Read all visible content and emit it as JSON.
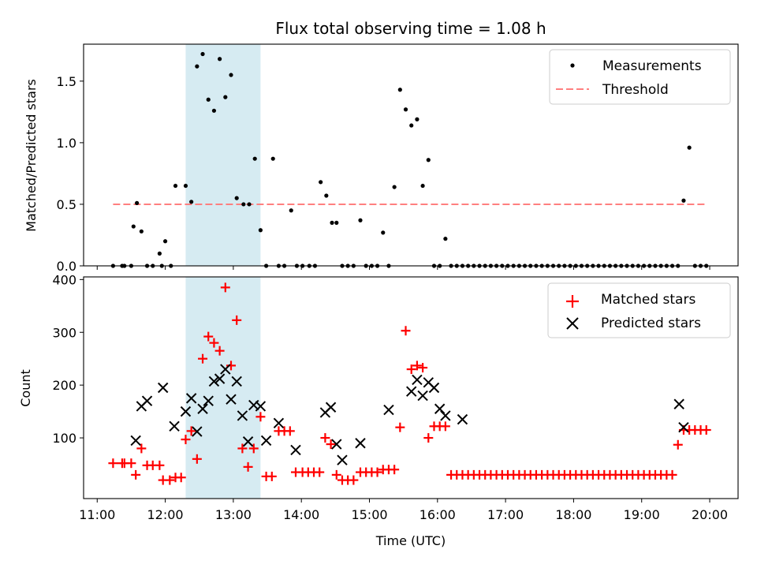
{
  "chart_data": [
    {
      "type": "scatter",
      "title": "Flux total observing time = 1.08 h",
      "xlabel": "",
      "ylabel": "Matched/Predicted stars",
      "xlim": [
        "11:00",
        "20:00"
      ],
      "ylim": [
        0,
        1.8
      ],
      "y_ticks": [
        "0.0",
        "0.5",
        "1.0",
        "1.5"
      ],
      "x_tick_labels_visible": false,
      "legend_position": "upper right",
      "shaded_interval": {
        "start": "12:18",
        "end": "13:24",
        "color": "#add8e6"
      },
      "series": [
        {
          "name": "Measurements",
          "marker": "dot",
          "color": "#000000",
          "x": [
            "11:14",
            "11:22",
            "11:24",
            "11:30",
            "11:32",
            "11:35",
            "11:39",
            "11:44",
            "11:49",
            "11:55",
            "11:57",
            "12:00",
            "12:05",
            "12:09",
            "12:18",
            "12:23",
            "12:28",
            "12:33",
            "12:38",
            "12:43",
            "12:48",
            "12:53",
            "12:58",
            "13:03",
            "13:09",
            "13:14",
            "13:19",
            "13:24",
            "13:29",
            "13:35",
            "13:40",
            "13:45",
            "13:51",
            "13:56",
            "14:01",
            "14:07",
            "14:12",
            "14:17",
            "14:22",
            "14:27",
            "14:31",
            "14:36",
            "14:41",
            "14:46",
            "14:52",
            "14:57",
            "15:02",
            "15:07",
            "15:12",
            "15:17",
            "15:22",
            "15:27",
            "15:32",
            "15:37",
            "15:42",
            "15:47",
            "15:52",
            "15:57",
            "16:02",
            "16:07",
            "16:12",
            "16:17",
            "16:22",
            "16:27",
            "16:32",
            "16:37",
            "16:42",
            "16:47",
            "16:52",
            "16:57",
            "17:02",
            "17:07",
            "17:12",
            "17:17",
            "17:22",
            "17:27",
            "17:32",
            "17:37",
            "17:42",
            "17:47",
            "17:52",
            "17:57",
            "18:02",
            "18:07",
            "18:12",
            "18:17",
            "18:22",
            "18:27",
            "18:32",
            "18:37",
            "18:42",
            "18:47",
            "18:52",
            "18:57",
            "19:02",
            "19:07",
            "19:12",
            "19:17",
            "19:22",
            "19:27",
            "19:32",
            "19:37",
            "19:42",
            "19:47",
            "19:52",
            "19:57"
          ],
          "y": [
            0,
            0,
            0,
            0,
            0.32,
            0.51,
            0.28,
            0,
            0,
            0.1,
            0,
            0.2,
            0,
            0.65,
            0.65,
            0.52,
            1.62,
            1.72,
            1.35,
            1.26,
            1.68,
            1.37,
            1.55,
            0.55,
            0.5,
            0.5,
            0.87,
            0.29,
            0,
            0.87,
            0,
            0,
            0.45,
            0,
            0,
            0,
            0,
            0.68,
            0.57,
            0.35,
            0.35,
            0,
            0,
            0,
            0.37,
            0,
            0,
            0,
            0.27,
            0,
            0.64,
            1.43,
            1.27,
            1.14,
            1.19,
            0.65,
            0.86,
            0,
            0,
            0.22,
            0,
            0,
            0,
            0,
            0,
            0,
            0,
            0,
            0,
            0,
            0,
            0,
            0,
            0,
            0,
            0,
            0,
            0,
            0,
            0,
            0,
            0,
            0,
            0,
            0,
            0,
            0,
            0,
            0,
            0,
            0,
            0,
            0,
            0,
            0,
            0,
            0,
            0,
            0,
            0,
            0,
            0.53,
            0.96,
            0,
            0,
            0
          ]
        },
        {
          "name": "Threshold",
          "marker": "dashed-line",
          "color": "#ff7f7f",
          "x": [
            "11:14",
            "19:57"
          ],
          "y": [
            0.5,
            0.5
          ]
        }
      ]
    },
    {
      "type": "scatter",
      "title": "",
      "xlabel": "Time (UTC)",
      "ylabel": "Count",
      "xlim": [
        "11:00",
        "20:00"
      ],
      "ylim": [
        0,
        400
      ],
      "y_ticks": [
        "100",
        "200",
        "300",
        "400"
      ],
      "x_ticks": [
        "11:00",
        "12:00",
        "13:00",
        "14:00",
        "15:00",
        "16:00",
        "17:00",
        "18:00",
        "19:00",
        "20:00"
      ],
      "legend_position": "upper right",
      "shaded_interval": {
        "start": "12:18",
        "end": "13:24",
        "color": "#add8e6"
      },
      "series": [
        {
          "name": "Matched stars",
          "marker": "plus",
          "color": "#ff0000",
          "x": [
            "11:14",
            "11:22",
            "11:24",
            "11:30",
            "11:34",
            "11:39",
            "11:44",
            "11:49",
            "11:55",
            "11:58",
            "12:04",
            "12:09",
            "12:14",
            "12:18",
            "12:23",
            "12:28",
            "12:33",
            "12:38",
            "12:43",
            "12:48",
            "12:53",
            "12:58",
            "13:03",
            "13:08",
            "13:13",
            "13:18",
            "13:24",
            "13:29",
            "13:34",
            "13:40",
            "13:45",
            "13:50",
            "13:55",
            "14:01",
            "14:06",
            "14:11",
            "14:16",
            "14:21",
            "14:26",
            "14:31",
            "14:36",
            "14:41",
            "14:46",
            "14:52",
            "14:57",
            "15:02",
            "15:07",
            "15:12",
            "15:17",
            "15:22",
            "15:27",
            "15:32",
            "15:37",
            "15:42",
            "15:47",
            "15:52",
            "15:57",
            "16:02",
            "16:07",
            "16:12",
            "16:17",
            "16:22",
            "16:27",
            "16:32",
            "16:37",
            "16:42",
            "16:47",
            "16:52",
            "16:57",
            "17:02",
            "17:07",
            "17:12",
            "17:17",
            "17:22",
            "17:27",
            "17:32",
            "17:37",
            "17:42",
            "17:47",
            "17:52",
            "17:57",
            "18:02",
            "18:07",
            "18:12",
            "18:17",
            "18:22",
            "18:27",
            "18:32",
            "18:37",
            "18:42",
            "18:47",
            "18:52",
            "18:57",
            "19:02",
            "19:07",
            "19:12",
            "19:17",
            "19:22",
            "19:27",
            "19:32",
            "19:37",
            "19:42",
            "19:47",
            "19:52",
            "19:57"
          ],
          "y": [
            52,
            52,
            52,
            52,
            30,
            80,
            48,
            48,
            48,
            20,
            20,
            25,
            25,
            97,
            113,
            60,
            250,
            292,
            280,
            265,
            385,
            237,
            323,
            80,
            45,
            80,
            140,
            27,
            27,
            113,
            113,
            113,
            35,
            35,
            35,
            35,
            35,
            100,
            88,
            30,
            20,
            20,
            20,
            35,
            35,
            35,
            35,
            40,
            40,
            40,
            120,
            303,
            230,
            237,
            233,
            100,
            122,
            122,
            122,
            30,
            30,
            30,
            30,
            30,
            30,
            30,
            30,
            30,
            30,
            30,
            30,
            30,
            30,
            30,
            30,
            30,
            30,
            30,
            30,
            30,
            30,
            30,
            30,
            30,
            30,
            30,
            30,
            30,
            30,
            30,
            30,
            30,
            30,
            30,
            30,
            30,
            30,
            30,
            30,
            87,
            115,
            115,
            115,
            115,
            115
          ]
        },
        {
          "name": "Predicted stars",
          "marker": "x",
          "color": "#000000",
          "x": [
            "11:34",
            "11:39",
            "11:44",
            "11:58",
            "12:08",
            "12:18",
            "12:23",
            "12:28",
            "12:33",
            "12:38",
            "12:43",
            "12:48",
            "12:53",
            "12:58",
            "13:03",
            "13:08",
            "13:13",
            "13:18",
            "13:24",
            "13:29",
            "13:40",
            "13:55",
            "14:21",
            "14:26",
            "14:31",
            "14:36",
            "14:52",
            "15:17",
            "15:37",
            "15:42",
            "15:47",
            "15:52",
            "15:57",
            "16:02",
            "16:07",
            "16:22",
            "19:33",
            "19:37"
          ],
          "y": [
            95,
            160,
            170,
            195,
            122,
            150,
            175,
            112,
            155,
            170,
            207,
            212,
            230,
            173,
            207,
            142,
            93,
            162,
            160,
            95,
            128,
            77,
            148,
            158,
            88,
            58,
            90,
            153,
            188,
            210,
            180,
            205,
            195,
            155,
            142,
            135,
            164,
            120
          ]
        }
      ]
    }
  ]
}
